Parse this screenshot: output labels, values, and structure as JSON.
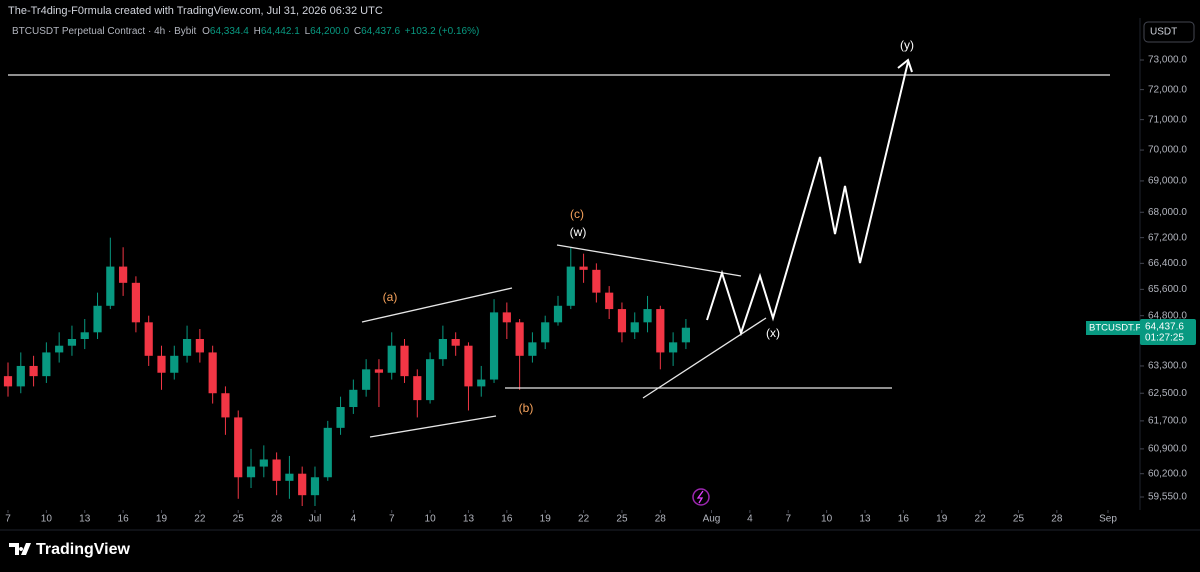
{
  "header": {
    "credit": "The-Tr4ding-F0rmula created with TradingView.com, Jul 31, 2026 06:32 UTC",
    "symbol": "BTCUSDT Perpetual Contract · 4h · Bybit",
    "o_label": "O",
    "open": "64,334.4",
    "h_label": "H",
    "high": "64,442.1",
    "l_label": "L",
    "low": "64,200.0",
    "c_label": "C",
    "close": "64,437.6",
    "change": "+103.2 (+0.16%)",
    "currency": "USDT"
  },
  "price_tag": {
    "symbol": "BTCUSDT.P",
    "price": "64,437.6",
    "countdown": "01:27:25"
  },
  "annotations": {
    "a": "(a)",
    "b": "(b)",
    "c": "(c)",
    "w": "(w)",
    "x": "(x)",
    "y": "(y)"
  },
  "footer": {
    "logo": "TradingView"
  },
  "chart_data": {
    "type": "candlestick",
    "log_scale": true,
    "up_color": "#089981",
    "down_color": "#f23645",
    "ylim": [
      59190,
      74374
    ],
    "yticks": [
      {
        "value": 73000,
        "label": "73,000.0"
      },
      {
        "value": 72000,
        "label": "72,000.0"
      },
      {
        "value": 71000,
        "label": "71,000.0"
      },
      {
        "value": 70000,
        "label": "70,000.0"
      },
      {
        "value": 69000,
        "label": "69,000.0"
      },
      {
        "value": 68000,
        "label": "68,000.0"
      },
      {
        "value": 67200,
        "label": "67,200.0"
      },
      {
        "value": 66400,
        "label": "66,400.0"
      },
      {
        "value": 65600,
        "label": "65,600.0"
      },
      {
        "value": 64800,
        "label": "64,800.0"
      },
      {
        "value": 63300,
        "label": "63,300.0"
      },
      {
        "value": 62500,
        "label": "62,500.0"
      },
      {
        "value": 61700,
        "label": "61,700.0"
      },
      {
        "value": 60900,
        "label": "60,900.0"
      },
      {
        "value": 60200,
        "label": "60,200.0"
      },
      {
        "value": 59550,
        "label": "59,550.0"
      }
    ],
    "xticks": [
      {
        "value": "Jun 7",
        "label": "7"
      },
      {
        "value": "Jun 10",
        "label": "10"
      },
      {
        "value": "Jun 13",
        "label": "13"
      },
      {
        "value": "Jun 16",
        "label": "16"
      },
      {
        "value": "Jun 19",
        "label": "19"
      },
      {
        "value": "Jun 22",
        "label": "22"
      },
      {
        "value": "Jun 25",
        "label": "25"
      },
      {
        "value": "Jun 28",
        "label": "28"
      },
      {
        "value": "Jul 1",
        "label": "Jul"
      },
      {
        "value": "Jul 4",
        "label": "4"
      },
      {
        "value": "Jul 7",
        "label": "7"
      },
      {
        "value": "Jul 10",
        "label": "10"
      },
      {
        "value": "Jul 13",
        "label": "13"
      },
      {
        "value": "Jul 16",
        "label": "16"
      },
      {
        "value": "Jul 19",
        "label": "19"
      },
      {
        "value": "Jul 22",
        "label": "22"
      },
      {
        "value": "Jul 25",
        "label": "25"
      },
      {
        "value": "Jul 28",
        "label": "28"
      },
      {
        "value": "Aug 1",
        "label": "Aug"
      },
      {
        "value": "Aug 4",
        "label": "4"
      },
      {
        "value": "Aug 7",
        "label": "7"
      },
      {
        "value": "Aug 10",
        "label": "10"
      },
      {
        "value": "Aug 13",
        "label": "13"
      },
      {
        "value": "Aug 16",
        "label": "16"
      },
      {
        "value": "Aug 19",
        "label": "19"
      },
      {
        "value": "Aug 22",
        "label": "22"
      },
      {
        "value": "Aug 25",
        "label": "25"
      },
      {
        "value": "Aug 28",
        "label": "28"
      },
      {
        "value": "Sep 1",
        "label": "Sep"
      }
    ],
    "x": [
      "Jun 7",
      "Jun 8",
      "Jun 9",
      "Jun 10",
      "Jun 11",
      "Jun 12",
      "Jun 13",
      "Jun 14",
      "Jun 15",
      "Jun 16",
      "Jun 17",
      "Jun 18",
      "Jun 19",
      "Jun 20",
      "Jun 21",
      "Jun 22",
      "Jun 23",
      "Jun 24",
      "Jun 25",
      "Jun 26",
      "Jun 27",
      "Jun 28",
      "Jun 29",
      "Jun 30",
      "Jul 1",
      "Jul 2",
      "Jul 3",
      "Jul 4",
      "Jul 5",
      "Jul 6",
      "Jul 7",
      "Jul 8",
      "Jul 9",
      "Jul 10",
      "Jul 11",
      "Jul 12",
      "Jul 13",
      "Jul 14",
      "Jul 15",
      "Jul 16",
      "Jul 17",
      "Jul 18",
      "Jul 19",
      "Jul 20",
      "Jul 21",
      "Jul 22",
      "Jul 23",
      "Jul 24",
      "Jul 25",
      "Jul 26",
      "Jul 27",
      "Jul 28",
      "Jul 29",
      "Jul 30"
    ],
    "open": [
      63000,
      62700,
      63300,
      63000,
      63700,
      63900,
      64100,
      64300,
      65100,
      66300,
      65800,
      64600,
      63600,
      63100,
      63600,
      64100,
      63700,
      62500,
      61800,
      60100,
      60400,
      60600,
      60000,
      60200,
      59600,
      60100,
      61500,
      62100,
      62600,
      63200,
      63100,
      63900,
      63000,
      62300,
      63500,
      64100,
      63900,
      62700,
      62900,
      64900,
      64600,
      63600,
      64000,
      64600,
      65100,
      66300,
      66200,
      65500,
      65000,
      64300,
      64600,
      65000,
      63700,
      64000
    ],
    "high": [
      63400,
      63700,
      63600,
      64000,
      64300,
      64500,
      64700,
      65500,
      67200,
      66900,
      66000,
      64800,
      63900,
      63900,
      64500,
      64400,
      63900,
      62700,
      62000,
      60900,
      61000,
      60800,
      60700,
      60400,
      60400,
      61700,
      62400,
      62900,
      63500,
      63500,
      64300,
      64100,
      63200,
      63700,
      64500,
      64300,
      64000,
      63300,
      65300,
      65200,
      64700,
      64300,
      64800,
      65400,
      66900,
      66700,
      66400,
      65700,
      65200,
      64900,
      65400,
      65100,
      64300,
      64700
    ],
    "low": [
      62400,
      62500,
      62700,
      62800,
      63400,
      63600,
      63800,
      64100,
      65000,
      65400,
      64300,
      63300,
      62600,
      62900,
      63400,
      63400,
      62200,
      61300,
      59500,
      59800,
      60100,
      59600,
      59500,
      59300,
      59300,
      60000,
      61300,
      61900,
      62400,
      62100,
      62900,
      62800,
      61800,
      62200,
      63300,
      63600,
      62000,
      62400,
      62800,
      64100,
      62600,
      63400,
      63800,
      64500,
      65000,
      65800,
      65200,
      64700,
      64000,
      64100,
      64300,
      63200,
      63300,
      63800
    ],
    "close": [
      62700,
      63300,
      63000,
      63700,
      63900,
      64100,
      64300,
      65100,
      66300,
      65800,
      64600,
      63600,
      63100,
      63600,
      64100,
      63700,
      62500,
      61800,
      60100,
      60400,
      60600,
      60000,
      60200,
      59600,
      60100,
      61500,
      62100,
      62600,
      63200,
      63100,
      63900,
      63000,
      62300,
      63500,
      64100,
      63900,
      62700,
      62900,
      64900,
      64600,
      63600,
      64000,
      64600,
      65100,
      66300,
      66200,
      65500,
      65000,
      64300,
      64600,
      65000,
      63700,
      64000,
      64437.6
    ]
  }
}
